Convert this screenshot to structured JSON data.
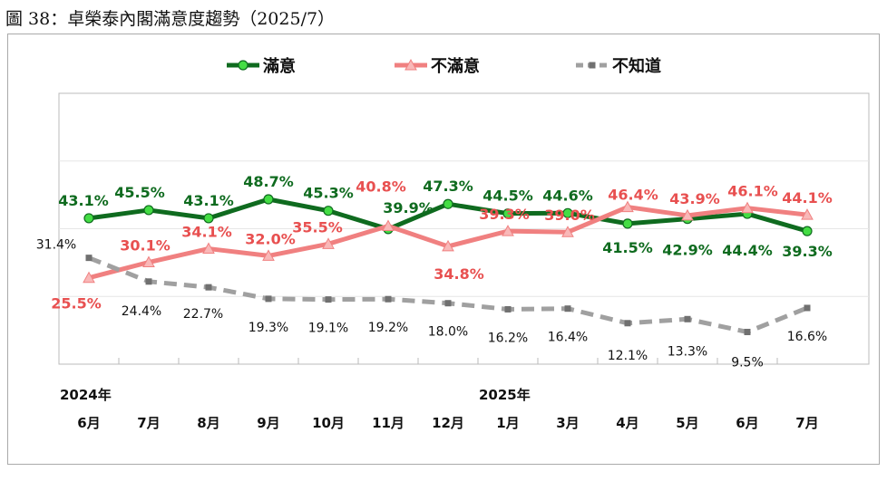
{
  "title": "圖 38：卓榮泰內閣滿意度趨勢（2025/7）",
  "chart_data": {
    "type": "line",
    "title": "圖 38：卓榮泰內閣滿意度趨勢（2025/7）",
    "categories": [
      "6月",
      "7月",
      "8月",
      "9月",
      "10月",
      "11月",
      "12月",
      "1月",
      "3月",
      "4月",
      "5月",
      "6月",
      "7月"
    ],
    "year_labels": [
      {
        "label": "2024年",
        "at": "6月"
      },
      {
        "label": "2025年",
        "at": "1月"
      }
    ],
    "ylim": [
      0,
      80
    ],
    "grid": true,
    "legend": "top",
    "series": [
      {
        "name": "滿意",
        "color": "#0f6b1f",
        "marker": "circle",
        "marker_color": "#44dd44",
        "label_color": "#0f6b1f",
        "values": [
          43.1,
          45.5,
          43.1,
          48.7,
          45.3,
          39.9,
          47.3,
          44.5,
          44.6,
          41.5,
          42.9,
          44.4,
          39.3
        ]
      },
      {
        "name": "不滿意",
        "color": "#f08080",
        "marker": "triangle",
        "marker_color": "#f9b8b8",
        "label_color": "#e85050",
        "values": [
          25.5,
          30.1,
          34.1,
          32.0,
          35.5,
          40.8,
          34.8,
          39.3,
          39.0,
          46.4,
          43.9,
          46.1,
          44.1
        ]
      },
      {
        "name": "不知道",
        "color": "#a0a0a0",
        "marker": "square",
        "marker_color": "#707070",
        "label_color": "#111111",
        "dashed": true,
        "values": [
          31.4,
          24.4,
          22.7,
          19.3,
          19.1,
          19.2,
          18.0,
          16.2,
          16.4,
          12.1,
          13.3,
          9.5,
          16.6
        ]
      }
    ]
  }
}
